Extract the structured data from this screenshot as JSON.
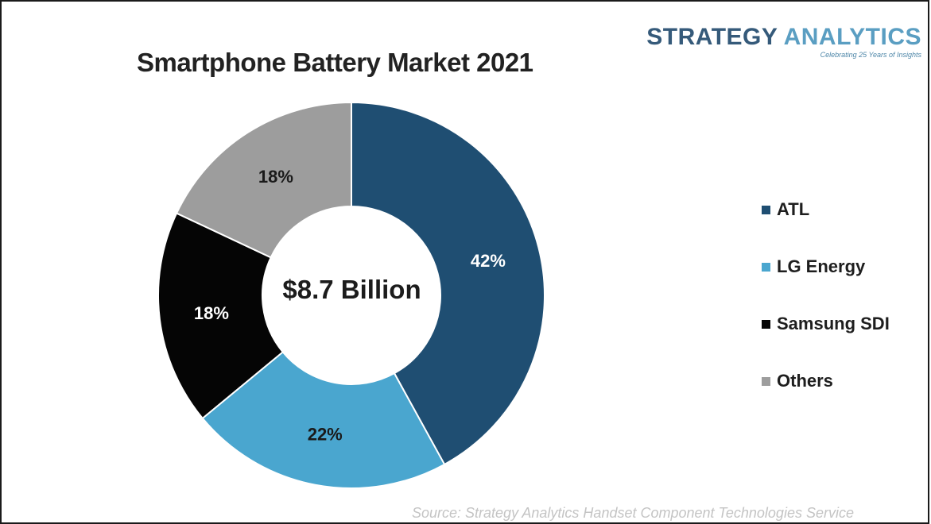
{
  "brand": {
    "name_part1": "STRATEGY",
    "name_part2": "ANALYTICS",
    "tagline": "Celebrating 25 Years of Insights"
  },
  "center_label": "$8.7 Billion",
  "source": "Source: Strategy Analytics Handset Component Technologies Service",
  "colors": {
    "ATL": "#1f4e72",
    "LG Energy": "#4aa6cf",
    "Samsung SDI": "#050505",
    "Others": "#9d9d9d"
  },
  "chart_data": {
    "type": "pie",
    "title": "Smartphone Battery Market 2021",
    "categories": [
      "ATL",
      "LG Energy",
      "Samsung SDI",
      "Others"
    ],
    "values": [
      42,
      22,
      18,
      18
    ],
    "data_labels": [
      "42%",
      "22%",
      "18%",
      "18%"
    ],
    "legend_position": "right"
  }
}
